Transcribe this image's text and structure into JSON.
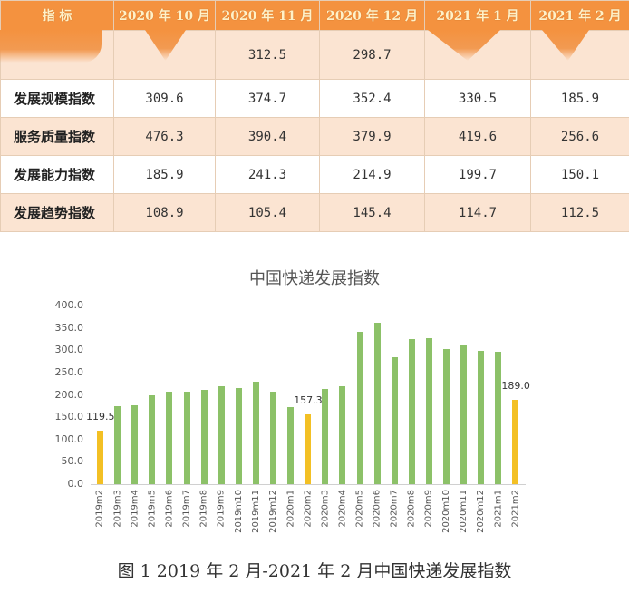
{
  "table": {
    "headers": [
      "指　标",
      "2020年10月",
      "2020年11月",
      "2020年12月",
      "2021年1月",
      "2021年2月"
    ],
    "header_display": [
      "指   标",
      "2020 年 10 月",
      "2020 年 11 月",
      "2020 年 12 月",
      "2021 年 1 月",
      "2021 年 2 月"
    ],
    "rows": [
      {
        "label": "",
        "values": [
          "",
          "312.5",
          "298.7",
          "",
          ""
        ]
      },
      {
        "label": "发展规模指数",
        "values": [
          "309.6",
          "374.7",
          "352.4",
          "330.5",
          "185.9"
        ]
      },
      {
        "label": "服务质量指数",
        "values": [
          "476.3",
          "390.4",
          "379.9",
          "419.6",
          "256.6"
        ]
      },
      {
        "label": "发展能力指数",
        "values": [
          "185.9",
          "241.3",
          "214.9",
          "199.7",
          "150.1"
        ]
      },
      {
        "label": "发展趋势指数",
        "values": [
          "108.9",
          "105.4",
          "145.4",
          "114.7",
          "112.5"
        ]
      }
    ],
    "colors": {
      "header_bg": "#f4923f",
      "header_text": "#fff1c8",
      "stripe": "#fbe4d2"
    }
  },
  "chart_data": {
    "type": "bar",
    "title": "中国快递发展指数",
    "xlabel": "",
    "ylabel": "",
    "ylim": [
      0,
      400
    ],
    "yticks": [
      "0.0",
      "50.0",
      "100.0",
      "150.0",
      "200.0",
      "250.0",
      "300.0",
      "350.0",
      "400.0"
    ],
    "grid": false,
    "legend": null,
    "categories": [
      "2019m2",
      "2019m3",
      "2019m4",
      "2019m5",
      "2019m6",
      "2019m7",
      "2019m8",
      "2019m9",
      "2019m10",
      "2019m11",
      "2019m12",
      "2020m1",
      "2020m2",
      "2020m3",
      "2020m4",
      "2020m5",
      "2020m6",
      "2020m7",
      "2020m8",
      "2020m9",
      "2020m10",
      "2020m11",
      "2020m12",
      "2021m1",
      "2021m2"
    ],
    "values": [
      119.5,
      175,
      176,
      198,
      207,
      207,
      212,
      220,
      216,
      229,
      207,
      172,
      157.3,
      214,
      220,
      342,
      362,
      284,
      325,
      327,
      303,
      312.5,
      298.7,
      297,
      189.0
    ],
    "highlighted": [
      "2019m2",
      "2020m2",
      "2021m2"
    ],
    "data_labels": {
      "2019m2": "119.5",
      "2020m2": "157.3",
      "2021m2": "189.0"
    },
    "colors": {
      "normal": "#8cc168",
      "highlight": "#f3c024"
    }
  },
  "caption": "图 1 2019 年 2 月-2021 年 2 月中国快递发展指数"
}
